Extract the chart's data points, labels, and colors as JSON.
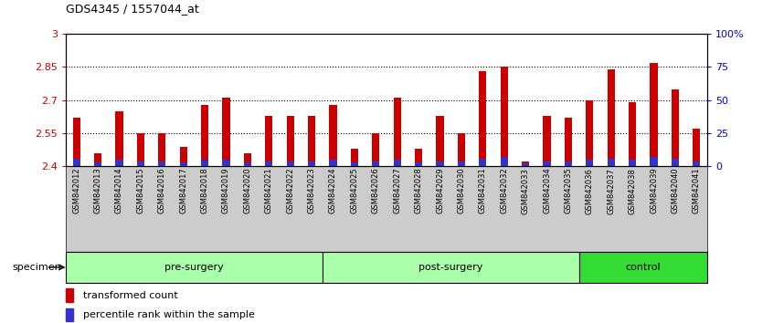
{
  "title": "GDS4345 / 1557044_at",
  "samples": [
    "GSM842012",
    "GSM842013",
    "GSM842014",
    "GSM842015",
    "GSM842016",
    "GSM842017",
    "GSM842018",
    "GSM842019",
    "GSM842020",
    "GSM842021",
    "GSM842022",
    "GSM842023",
    "GSM842024",
    "GSM842025",
    "GSM842026",
    "GSM842027",
    "GSM842028",
    "GSM842029",
    "GSM842030",
    "GSM842031",
    "GSM842032",
    "GSM842033",
    "GSM842034",
    "GSM842035",
    "GSM842036",
    "GSM842037",
    "GSM842038",
    "GSM842039",
    "GSM842040",
    "GSM842041"
  ],
  "transformed_count": [
    2.62,
    2.46,
    2.65,
    2.55,
    2.55,
    2.49,
    2.68,
    2.71,
    2.46,
    2.63,
    2.63,
    2.63,
    2.68,
    2.48,
    2.55,
    2.71,
    2.48,
    2.63,
    2.55,
    2.83,
    2.85,
    2.42,
    2.63,
    2.62,
    2.7,
    2.84,
    2.69,
    2.87,
    2.75,
    2.57
  ],
  "percentile_rank": [
    6,
    3,
    5,
    4,
    4,
    3,
    5,
    5,
    3,
    4,
    4,
    4,
    5,
    3,
    4,
    5,
    3,
    4,
    4,
    6,
    7,
    2,
    4,
    4,
    5,
    6,
    5,
    7,
    6,
    4
  ],
  "group_starts": [
    0,
    12,
    24
  ],
  "group_ends": [
    12,
    24,
    30
  ],
  "group_labels": [
    "pre-surgery",
    "post-surgery",
    "control"
  ],
  "group_colors": [
    "#AAFFAA",
    "#AAFFAA",
    "#33DD33"
  ],
  "ymin": 2.4,
  "ymax": 3.0,
  "yticks": [
    2.4,
    2.55,
    2.7,
    2.85,
    3.0
  ],
  "ytick_labels": [
    "2.4",
    "2.55",
    "2.7",
    "2.85",
    "3"
  ],
  "y2ticks": [
    0,
    25,
    50,
    75,
    100
  ],
  "y2tick_labels": [
    "0",
    "25",
    "50",
    "75",
    "100%"
  ],
  "gridlines": [
    2.55,
    2.7,
    2.85
  ],
  "bar_color_red": "#CC0000",
  "bar_color_blue": "#3333CC",
  "bg_color_plot": "#FFFFFF",
  "bg_color_fig": "#FFFFFF",
  "left_ylabel_color": "#CC0000",
  "right_ylabel_color": "#0000CC",
  "bar_width": 0.35,
  "blue_bar_width": 0.35,
  "tick_area_color": "#CCCCCC",
  "specimen_label": "specimen",
  "legend_red": "transformed count",
  "legend_blue": "percentile rank within the sample"
}
